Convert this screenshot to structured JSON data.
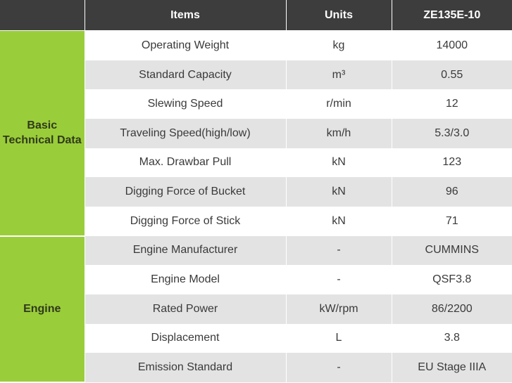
{
  "header": {
    "items": "Items",
    "units": "Units",
    "model": "ZE135E-10"
  },
  "groups": {
    "basic": "Basic Technical Data",
    "engine": "Engine"
  },
  "rows": [
    {
      "item": "Operating Weight",
      "unit": "kg",
      "value": "14000"
    },
    {
      "item": "Standard Capacity",
      "unit": "m³",
      "value": "0.55"
    },
    {
      "item": "Slewing Speed",
      "unit": "r/min",
      "value": "12"
    },
    {
      "item": "Traveling Speed(high/low)",
      "unit": "km/h",
      "value": "5.3/3.0"
    },
    {
      "item": "Max. Drawbar Pull",
      "unit": "kN",
      "value": "123"
    },
    {
      "item": "Digging Force of Bucket",
      "unit": "kN",
      "value": "96"
    },
    {
      "item": "Digging Force of Stick",
      "unit": "kN",
      "value": "71"
    },
    {
      "item": "Engine Manufacturer",
      "unit": "-",
      "value": "CUMMINS"
    },
    {
      "item": "Engine Model",
      "unit": "-",
      "value": "QSF3.8"
    },
    {
      "item": "Rated Power",
      "unit": "kW/rpm",
      "value": "86/2200"
    },
    {
      "item": "Displacement",
      "unit": "L",
      "value": "3.8"
    },
    {
      "item": "Emission Standard",
      "unit": "-",
      "value": "EU Stage IIIA"
    }
  ],
  "colors": {
    "header_bg": "#3d3d3d",
    "group_bg": "#9acd3a",
    "row_gray": "#e3e3e3",
    "row_white": "#ffffff"
  }
}
